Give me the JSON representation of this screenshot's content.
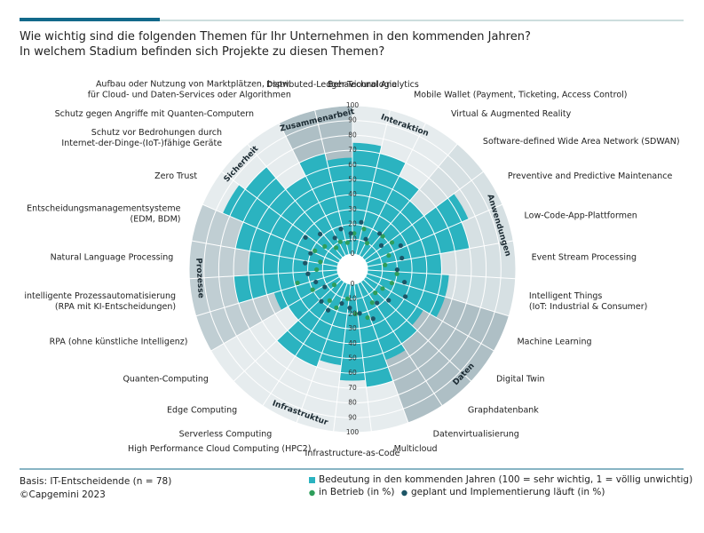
{
  "chart_data": {
    "type": "polar-bar",
    "title": "Wie wichtig sind die folgenden Themen für Ihr Unternehmen in den kommenden Jahren?",
    "subtitle": "In welchem Stadium befinden sich Projekte zu diesen Themen?",
    "categories": [
      "Behavioural Analytics",
      "Mobile Wallet (Payment, Ticketing, Access Control)",
      "Virtual & Augmented Reality",
      "Software-defined Wide Area Network (SDWAN)",
      "Preventive and Predictive Maintenance",
      "Low-Code-App-Plattformen",
      "Event Stream Processing",
      "Intelligent Things\n(IoT: Industrial & Consumer)",
      "Machine Learning",
      "Digital Twin",
      "Graphdatenbank",
      "Datenvirtualisierung",
      "Multicloud",
      "Infrastructure-as-Code",
      "High Performance Cloud Computing (HPC2)",
      "Serverless Computing",
      "Edge Computing",
      "Quanten-Computing",
      "RPA (ohne künstliche Intelligenz)",
      "intelligente Prozessautomatisierung\n(RPA mit KI-Entscheidungen)",
      "Natural Language Processing",
      "Entscheidungsmanagementsysteme\n(EDM, BDM)",
      "Zero Trust",
      "Schutz vor Bedrohungen durch\nInternet-der-Dinge-(IoT-)fähige Geräte",
      "Schutz gegen Angriffe mit Quanten-Computern",
      "Aufbau oder Nutzung von Marktplätzen, bspw.\nfür Cloud- und Daten-Services oder Algorithmen",
      "Distributed-Ledger-Technologie"
    ],
    "groups": [
      {
        "name": "Interaktion",
        "size": 3
      },
      {
        "name": "Anwendungen",
        "size": 5
      },
      {
        "name": "Daten",
        "size": 4
      },
      {
        "name": "Infrastruktur",
        "size": 6
      },
      {
        "name": "Prozesse",
        "size": 4
      },
      {
        "name": "Sicherheit",
        "size": 3
      },
      {
        "name": "Zusammenarbeit",
        "size": 2
      }
    ],
    "series": [
      {
        "name": "Bedeutung in den kommenden Jahren (100 = sehr wichtig, 1 = völlig unwichtig)",
        "color": "#2bb3c0",
        "marker": "bar",
        "values": [
          75,
          70,
          60,
          50,
          75,
          70,
          50,
          55,
          55,
          45,
          50,
          55,
          70,
          65,
          55,
          60,
          60,
          40,
          45,
          70,
          60,
          70,
          85,
          80,
          60,
          70,
          65
        ]
      },
      {
        "name": "in Betrieb (in %)",
        "color": "#2e9e5b",
        "marker": "dot",
        "values": [
          14,
          18,
          10,
          20,
          22,
          16,
          12,
          20,
          18,
          14,
          12,
          16,
          24,
          20,
          10,
          18,
          16,
          6,
          20,
          28,
          14,
          12,
          18,
          14,
          8,
          10,
          8
        ]
      },
      {
        "name": "geplant und Implementierung läuft (in %)",
        "color": "#1d5566",
        "marker": "dot",
        "values": [
          22,
          12,
          20,
          15,
          26,
          24,
          20,
          26,
          30,
          22,
          18,
          26,
          20,
          16,
          14,
          22,
          20,
          12,
          16,
          20,
          22,
          20,
          28,
          22,
          14,
          18,
          14
        ]
      }
    ],
    "rlim": [
      0,
      100
    ],
    "rticks": [
      0,
      10,
      20,
      30,
      40,
      50,
      60,
      70,
      80,
      90,
      100
    ],
    "source": "Basis: IT-Entscheidende (n = 78)",
    "copyright": "©Capgemini 2023"
  }
}
